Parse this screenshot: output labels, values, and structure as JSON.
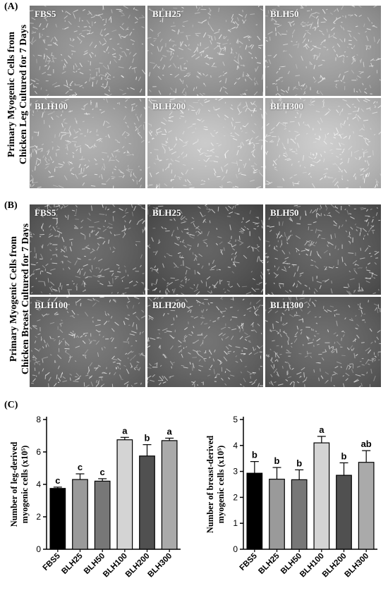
{
  "panels": {
    "a": {
      "label": "(A)",
      "side_label": [
        "Primary Myogenic Cells from",
        "Chicken Leg Cultured for 7 Days"
      ],
      "images": [
        {
          "label": "FBS5",
          "tone": "#8f8f8f"
        },
        {
          "label": "BLH25",
          "tone": "#9a9a9a"
        },
        {
          "label": "BLH50",
          "tone": "#a0a0a0"
        },
        {
          "label": "BLH100",
          "tone": "#a8a8a8"
        },
        {
          "label": "BLH200",
          "tone": "#c4c4c4"
        },
        {
          "label": "BLH300",
          "tone": "#c8c8c8"
        }
      ]
    },
    "b": {
      "label": "(B)",
      "side_label": [
        "Primary Myogenic Cells from",
        "Chicken Breast Cultured for 7 Days"
      ],
      "images": [
        {
          "label": "FBS5",
          "tone": "#5a5a5a"
        },
        {
          "label": "BLH25",
          "tone": "#505050"
        },
        {
          "label": "BLH50",
          "tone": "#555555"
        },
        {
          "label": "BLH100",
          "tone": "#6a6a6a"
        },
        {
          "label": "BLH200",
          "tone": "#626262"
        },
        {
          "label": "BLH300",
          "tone": "#5e5e5e"
        }
      ]
    },
    "c": {
      "label": "(C)"
    }
  },
  "chart_data": [
    {
      "type": "bar",
      "categories": [
        "FBS5",
        "BLH25",
        "BLH50",
        "BLH100",
        "BLH200",
        "BLH300"
      ],
      "values": [
        3.75,
        4.3,
        4.2,
        6.75,
        5.75,
        6.7
      ],
      "errors": [
        0.08,
        0.35,
        0.15,
        0.15,
        0.7,
        0.15
      ],
      "letters": [
        "c",
        "c",
        "c",
        "a",
        "b",
        "a"
      ],
      "colors": [
        "#000000",
        "#9a9a9a",
        "#777777",
        "#d4d4d4",
        "#505050",
        "#aaaaaa"
      ],
      "ylabel_lines": [
        "Number of leg-derived",
        "myogenic cells (x10⁵)"
      ],
      "ylim": [
        0,
        8
      ],
      "yticks": [
        0,
        2,
        4,
        6,
        8
      ]
    },
    {
      "type": "bar",
      "categories": [
        "FBS5",
        "BLH25",
        "BLH50",
        "BLH100",
        "BLH200",
        "BLH300"
      ],
      "values": [
        2.93,
        2.7,
        2.68,
        4.1,
        2.85,
        3.35
      ],
      "errors": [
        0.45,
        0.45,
        0.38,
        0.25,
        0.48,
        0.45
      ],
      "letters": [
        "b",
        "b",
        "b",
        "a",
        "b",
        "ab"
      ],
      "colors": [
        "#000000",
        "#9a9a9a",
        "#777777",
        "#d4d4d4",
        "#505050",
        "#aaaaaa"
      ],
      "ylabel_lines": [
        "Number of breast-derived",
        "myogenic cells (x10⁵)"
      ],
      "ylim": [
        0,
        5
      ],
      "yticks": [
        0,
        1,
        2,
        3,
        4,
        5
      ]
    }
  ]
}
